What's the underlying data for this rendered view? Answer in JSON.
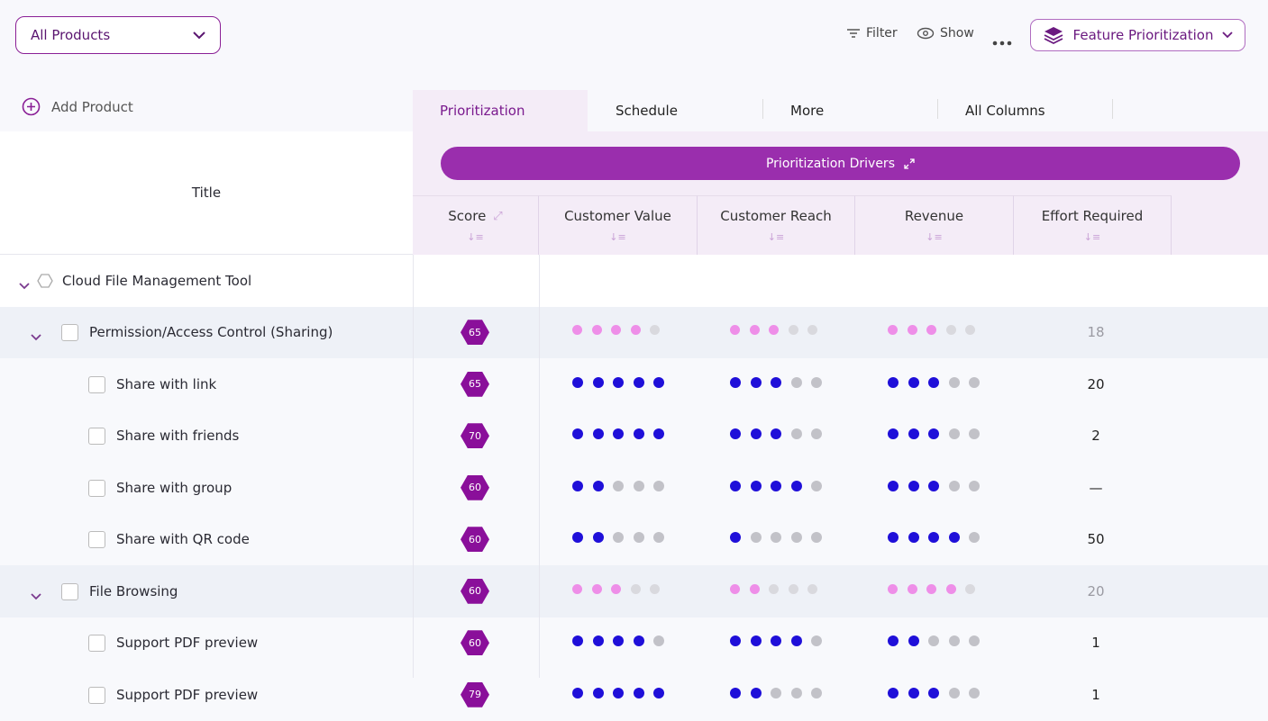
{
  "toolbar": {
    "product_select": "All Products",
    "filter": "Filter",
    "show": "Show",
    "view_select": "Feature Prioritization"
  },
  "sidebar": {
    "add_product": "Add Product",
    "title_header": "Title"
  },
  "tabs": [
    "Prioritization",
    "Schedule",
    "More",
    "All Columns"
  ],
  "drivers_banner": "Prioritization Drivers",
  "columns": [
    "Score",
    "Customer Value",
    "Customer Reach",
    "Revenue",
    "Effort Required"
  ],
  "tree": {
    "title": "Cloud File Management Tool",
    "features": [
      {
        "title": "Permission/Access Control (Sharing)",
        "score": 65,
        "ratings": [
          4,
          3,
          3
        ],
        "effort": 18,
        "items": [
          {
            "title": "Share with link",
            "score": 65,
            "ratings": [
              5,
              3,
              3
            ],
            "effort": 20
          },
          {
            "title": "Share with friends",
            "score": 70,
            "ratings": [
              5,
              3,
              3
            ],
            "effort": 2
          },
          {
            "title": "Share with group",
            "score": 60,
            "ratings": [
              2,
              4,
              3
            ],
            "effort": "—"
          },
          {
            "title": "Share with QR code",
            "score": 60,
            "ratings": [
              2,
              1,
              4
            ],
            "effort": 50
          }
        ]
      },
      {
        "title": "File Browsing",
        "score": 60,
        "ratings": [
          3,
          2,
          4
        ],
        "effort": 20,
        "items": [
          {
            "title": "Support PDF preview",
            "score": 60,
            "ratings": [
              4,
              4,
              2
            ],
            "effort": 1
          },
          {
            "title": "Support PDF preview",
            "score": 79,
            "ratings": [
              5,
              2,
              3
            ],
            "effort": 1
          }
        ]
      }
    ]
  }
}
